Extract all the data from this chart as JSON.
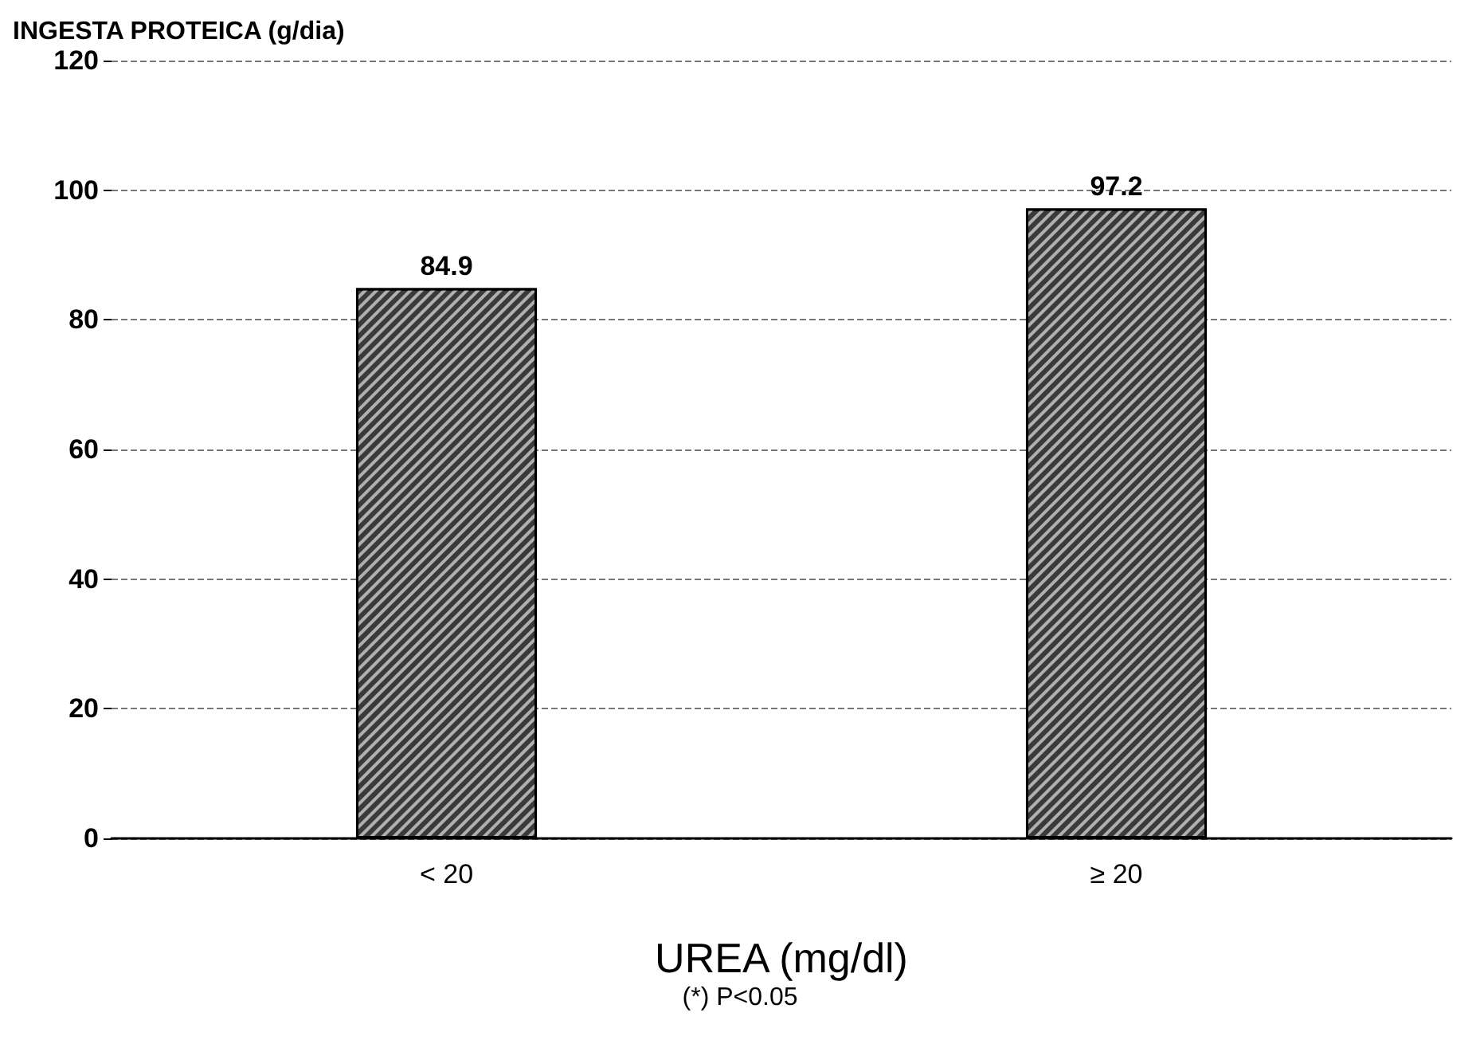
{
  "chart_data": {
    "type": "bar",
    "ylabel": "INGESTA PROTEICA (g/dia)",
    "xlabel": "UREA (mg/dl)",
    "categories": [
      "< 20",
      "≥ 20"
    ],
    "values": [
      84.9,
      97.2
    ],
    "color": "#3a3a3a",
    "ylim": [
      0,
      120
    ],
    "yticks": [
      0,
      20,
      40,
      60,
      80,
      100,
      120
    ],
    "grid": "y",
    "data_labels": true,
    "annotations": [
      "(*) P<0.05"
    ]
  }
}
